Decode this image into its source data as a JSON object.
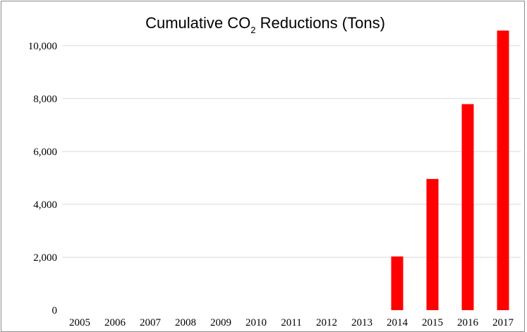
{
  "chart_data": {
    "type": "bar",
    "title_main": "Cumulative CO",
    "title_sub": "2",
    "title_rest": " Reductions (Tons)",
    "xlabel": "",
    "ylabel": "",
    "categories": [
      "2005",
      "2006",
      "2007",
      "2008",
      "2009",
      "2010",
      "2011",
      "2012",
      "2013",
      "2014",
      "2015",
      "2016",
      "2017"
    ],
    "series": [
      {
        "values": [
          0,
          0,
          0,
          0,
          0,
          0,
          0,
          0,
          0,
          2030,
          4960,
          7790,
          10570
        ]
      }
    ],
    "ylim": [
      0,
      10500
    ],
    "yticks": [
      0,
      2000,
      4000,
      6000,
      8000,
      10000
    ],
    "ytick_labels": [
      "0",
      "2,000",
      "4,000",
      "6,000",
      "8,000",
      "10,000"
    ],
    "grid": true,
    "bar_color": "#ff0000",
    "grid_color": "#d9d9d9"
  }
}
